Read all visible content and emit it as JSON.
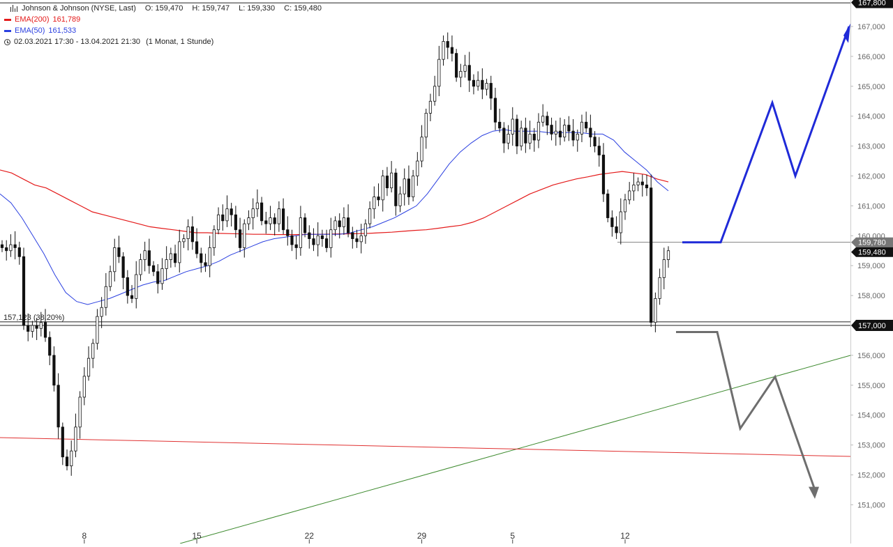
{
  "header": {
    "instrument": "Johnson & Johnson (NYSE, Last)",
    "open": "O: 159,470",
    "high": "H: 159,747",
    "low": "L: 159,330",
    "close": "C: 159,480",
    "ema200_label": "EMA(200)",
    "ema200_value": "161,789",
    "ema50_label": "EMA(50)",
    "ema50_value": "161,533",
    "range": "02.03.2021 17:30 - 13.04.2021 21:30",
    "period": "(1 Monat, 1 Stunde)"
  },
  "colors": {
    "ema200": "#e41a1a",
    "ema50": "#2a3fe0",
    "projection_up": "#1f2ad8",
    "projection_down": "#6e6e6e",
    "trendline_up": "#3d8a2e",
    "trendline_down": "#e03030",
    "candle": "#111111"
  },
  "chart_data": {
    "type": "candlestick",
    "y_ticks": [
      "167,000",
      "166,000",
      "165,000",
      "164,000",
      "163,000",
      "162,000",
      "161,000",
      "160,000",
      "159,000",
      "158,000",
      "157,000",
      "156,000",
      "155,000",
      "154,000",
      "153,000",
      "152,000",
      "151,000"
    ],
    "y_range": [
      150.6,
      167.8
    ],
    "x_ticks": [
      {
        "label": "8",
        "i": 19
      },
      {
        "label": "15",
        "i": 45
      },
      {
        "label": "22",
        "i": 71
      },
      {
        "label": "29",
        "i": 97
      },
      {
        "label": "5",
        "i": 118
      },
      {
        "label": "12",
        "i": 144
      }
    ],
    "level_labels": {
      "top": "167,800",
      "fib": "157,123 (38.20%)",
      "support": "157,000",
      "resistance": "159,780",
      "last": "159,480"
    },
    "levels": {
      "top": 167.8,
      "fib": 157.12,
      "support": 157.0,
      "resistance": 159.78,
      "last": 159.48
    },
    "closes": [
      159.6,
      159.5,
      159.7,
      159.6,
      159.3,
      157.0,
      156.8,
      157.0,
      156.9,
      157.1,
      156.6,
      156.0,
      155.0,
      153.6,
      152.6,
      152.3,
      152.8,
      153.6,
      154.6,
      155.3,
      155.9,
      156.4,
      157.3,
      157.6,
      158.3,
      158.8,
      159.6,
      159.3,
      158.6,
      158.0,
      157.9,
      158.7,
      159.2,
      159.5,
      159.0,
      158.8,
      158.4,
      158.9,
      159.2,
      159.4,
      159.1,
      159.8,
      159.9,
      160.3,
      159.8,
      159.4,
      159.1,
      159.0,
      159.6,
      160.2,
      160.7,
      160.5,
      160.9,
      160.7,
      160.2,
      159.6,
      160.4,
      160.6,
      160.9,
      161.1,
      160.5,
      160.4,
      160.6,
      160.4,
      160.9,
      160.2,
      160.0,
      159.7,
      159.6,
      160.6,
      160.1,
      159.9,
      159.7,
      160.0,
      159.9,
      159.6,
      160.2,
      160.5,
      160.3,
      160.6,
      160.1,
      159.9,
      159.8,
      160.0,
      160.4,
      160.9,
      161.3,
      161.2,
      162.0,
      161.6,
      162.1,
      161.0,
      161.4,
      161.9,
      161.3,
      162.0,
      162.5,
      163.3,
      164.1,
      164.5,
      165.0,
      165.9,
      166.5,
      166.3,
      166.1,
      165.3,
      165.5,
      165.7,
      165.2,
      165.0,
      165.2,
      164.9,
      165.1,
      164.6,
      163.8,
      163.6,
      163.1,
      163.4,
      163.9,
      163.0,
      163.6,
      163.1,
      163.4,
      163.2,
      163.8,
      164.0,
      163.7,
      163.4,
      163.5,
      163.3,
      163.7,
      163.5,
      163.2,
      163.4,
      163.8,
      163.6,
      163.3,
      163.0,
      162.7,
      161.4,
      160.6,
      160.3,
      160.1,
      160.8,
      161.2,
      161.5,
      161.7,
      161.8,
      161.7,
      161.6,
      157.1,
      157.9,
      158.6,
      159.2,
      159.5
    ],
    "ema200": [
      162.2,
      162.1,
      161.9,
      161.7,
      161.6,
      161.4,
      161.2,
      161.0,
      160.8,
      160.7,
      160.6,
      160.5,
      160.4,
      160.3,
      160.25,
      160.2,
      160.15,
      160.1,
      160.1,
      160.08,
      160.07,
      160.06,
      160.05,
      160.05,
      160.04,
      160.04,
      160.04,
      160.05,
      160.05,
      160.06,
      160.06,
      160.07,
      160.08,
      160.1,
      160.12,
      160.15,
      160.18,
      160.2,
      160.25,
      160.3,
      160.35,
      160.45,
      160.6,
      160.8,
      161.0,
      161.2,
      161.4,
      161.55,
      161.7,
      161.8,
      161.9,
      161.97,
      162.05,
      162.1,
      162.15,
      162.1,
      162.05,
      161.9,
      161.8
    ],
    "ema50": [
      161.4,
      161.1,
      160.6,
      160.0,
      159.4,
      158.7,
      158.1,
      157.8,
      157.7,
      157.8,
      157.9,
      158.05,
      158.2,
      158.35,
      158.45,
      158.5,
      158.65,
      158.8,
      158.9,
      159.0,
      159.15,
      159.35,
      159.5,
      159.65,
      159.8,
      159.9,
      159.95,
      160.0,
      160.05,
      160.05,
      160.05,
      160.05,
      160.1,
      160.2,
      160.3,
      160.45,
      160.6,
      160.8,
      161.0,
      161.4,
      161.9,
      162.4,
      162.8,
      163.1,
      163.35,
      163.5,
      163.55,
      163.5,
      163.5,
      163.5,
      163.45,
      163.45,
      163.45,
      163.45,
      163.4,
      163.4,
      163.2,
      162.8,
      162.5,
      162.2,
      161.8,
      161.5
    ]
  }
}
